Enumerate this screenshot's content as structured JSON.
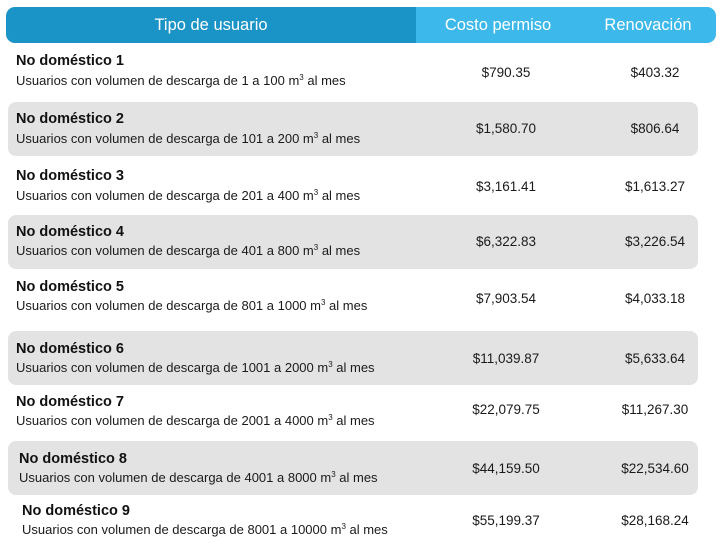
{
  "header": {
    "tipo": "Tipo de usuario",
    "costo": "Costo permiso",
    "renovacion": "Renovación"
  },
  "rows": [
    {
      "name": "No doméstico 1",
      "desc_pre": "Usuarios con volumen de descarga de 1 a 100 m",
      "sup": "3",
      "desc_post": " al mes",
      "costo": "$790.35",
      "renovacion": "$403.32"
    },
    {
      "name": "No doméstico 2",
      "desc_pre": "Usuarios con volumen de descarga de 101 a 200 m",
      "sup": "3",
      "desc_post": " al mes",
      "costo": "$1,580.70",
      "renovacion": "$806.64"
    },
    {
      "name": "No doméstico 3",
      "desc_pre": "Usuarios con volumen de descarga de 201 a 400 m",
      "sup": "3",
      "desc_post": " al mes",
      "costo": "$3,161.41",
      "renovacion": "$1,613.27"
    },
    {
      "name": "No doméstico 4",
      "desc_pre": "Usuarios con volumen de descarga de 401 a 800 m",
      "sup": "3",
      "desc_post": " al mes",
      "costo": "$6,322.83",
      "renovacion": "$3,226.54"
    },
    {
      "name": "No doméstico 5",
      "desc_pre": "Usuarios con volumen de descarga de 801 a 1000 m",
      "sup": "3",
      "desc_post": " al mes",
      "costo": "$7,903.54",
      "renovacion": "$4,033.18"
    },
    {
      "name": "No doméstico 6",
      "desc_pre": "Usuarios con volumen de descarga de 1001 a 2000 m",
      "sup": "3",
      "desc_post": " al mes",
      "costo": "$11,039.87",
      "renovacion": "$5,633.64"
    },
    {
      "name": "No doméstico 7",
      "desc_pre": "Usuarios con volumen de descarga de 2001 a 4000 m",
      "sup": "3",
      "desc_post": " al mes",
      "costo": "$22,079.75",
      "renovacion": "$11,267.30"
    },
    {
      "name": "No doméstico 8",
      "desc_pre": "Usuarios con volumen de descarga de 4001 a 8000 m",
      "sup": "3",
      "desc_post": " al mes",
      "costo": "$44,159.50",
      "renovacion": "$22,534.60"
    },
    {
      "name": "No doméstico 9",
      "desc_pre": "Usuarios con volumen de descarga de 8001 a 10000 m",
      "sup": "3",
      "desc_post": " al mes",
      "costo": "$55,199.37",
      "renovacion": "$28,168.24"
    }
  ]
}
